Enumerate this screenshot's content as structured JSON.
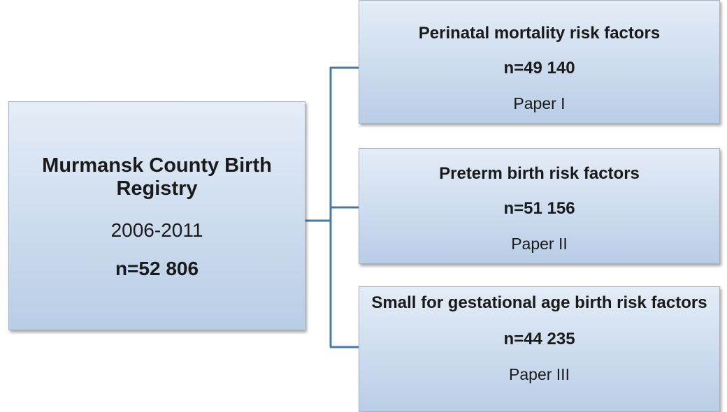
{
  "source": {
    "title": "Murmansk County Birth Registry",
    "period": "2006-2011",
    "n": "n=52 806"
  },
  "studies": [
    {
      "title": "Perinatal mortality risk factors",
      "n": "n=49 140",
      "paper": "Paper I"
    },
    {
      "title": "Preterm birth risk factors",
      "n": "n=51 156",
      "paper": "Paper II"
    },
    {
      "title": "Small for gestational age birth risk factors",
      "n": "n=44 235",
      "paper": "Paper III"
    }
  ]
}
